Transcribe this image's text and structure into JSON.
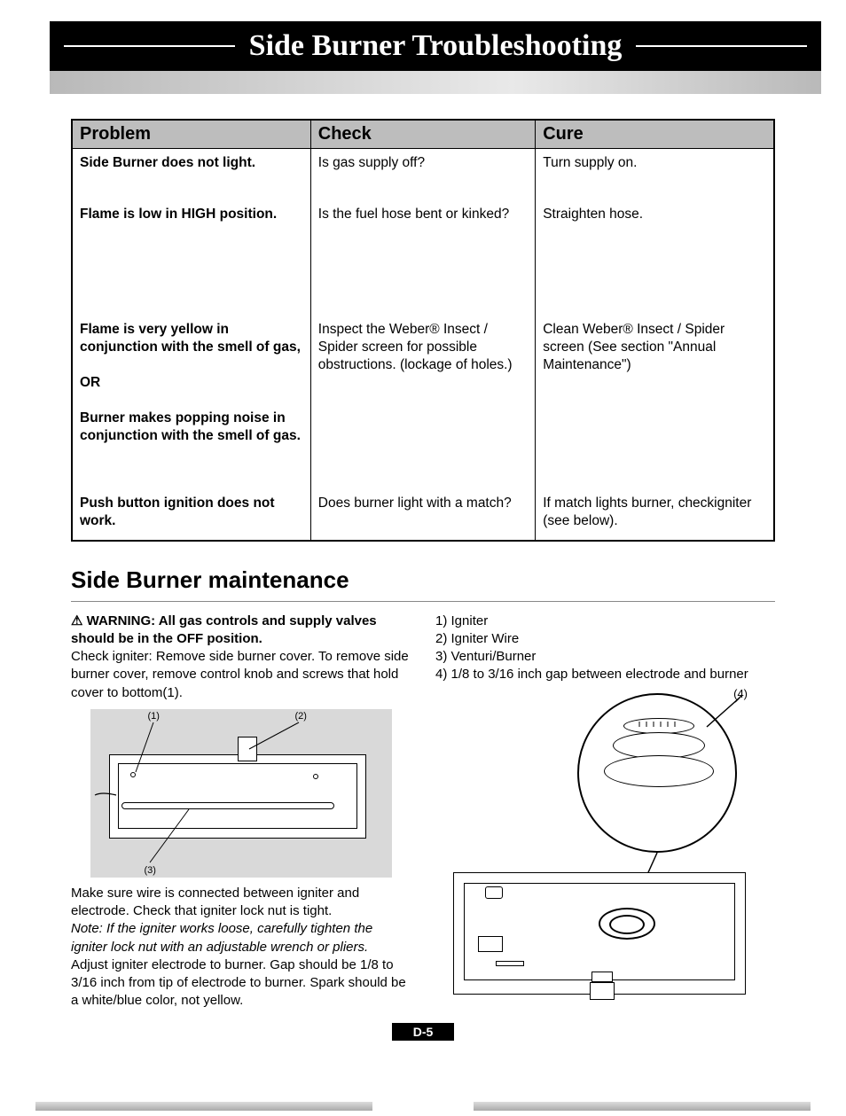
{
  "title": "Side Burner Troubleshooting",
  "table": {
    "headers": {
      "problem": "Problem",
      "check": "Check",
      "cure": "Cure"
    },
    "col_widths_pct": [
      34,
      32,
      34
    ],
    "rows": [
      {
        "problem": "Side Burner does not light.",
        "check": "Is gas supply off?",
        "cure": "Turn supply on.",
        "height_class": "body-row"
      },
      {
        "problem": "Flame is low in HIGH position.",
        "check": "Is the fuel hose bent or kinked?",
        "cure": "Straighten hose.",
        "height_class": "body-row h-tall"
      },
      {
        "problem_html": "Flame is very yellow in conjunction with the smell of gas,<br><br>OR<br><br>Burner makes popping noise in conjunction with the smell of gas.",
        "check": "Inspect the Weber® Insect / Spider screen for possible obstructions. (lockage of holes.)",
        "cure": "Clean Weber® Insect / Spider screen (See section \"Annual Maintenance\")",
        "height_class": "body-row h-extra"
      },
      {
        "problem": "Push button ignition does not work.",
        "check": "Does burner light with a match?",
        "cure": "If match lights burner, checkigniter (see below).",
        "height_class": "body-row"
      }
    ]
  },
  "maintenance": {
    "heading": "Side Burner maintenance",
    "warning_symbol": "⚠",
    "warning": "WARNING: All gas controls and supply valves should be in the OFF position.",
    "para1": "Check igniter: Remove side burner cover. To remove side burner cover, remove control knob and screws that hold cover to bottom(1).",
    "fig1_labels": {
      "l1": "(1)",
      "l2": "(2)",
      "l3": "(3)"
    },
    "para2": "Make sure wire is connected between igniter and electrode. Check that igniter lock nut is tight.",
    "note": "Note: If the igniter works loose, carefully tighten the igniter lock nut with an adjustable wrench or pliers.",
    "para3": "Adjust igniter electrode to burner. Gap should be 1/8 to 3/16 inch from tip of electrode to burner. Spark should be a white/blue color, not yellow.",
    "legend": [
      "1) Igniter",
      "2) Igniter Wire",
      "3) Venturi/Burner",
      "4) 1/8 to 3/16 inch gap between electrode and burner"
    ],
    "fig2_label": "(4)"
  },
  "page_number": "D-5",
  "colors": {
    "title_bg": "#000000",
    "title_fg": "#ffffff",
    "header_row_bg": "#bdbdbd",
    "figure_bg": "#d9d9d9",
    "gradient_start": "#b9b9b9",
    "gradient_mid": "#e9e9e9"
  }
}
